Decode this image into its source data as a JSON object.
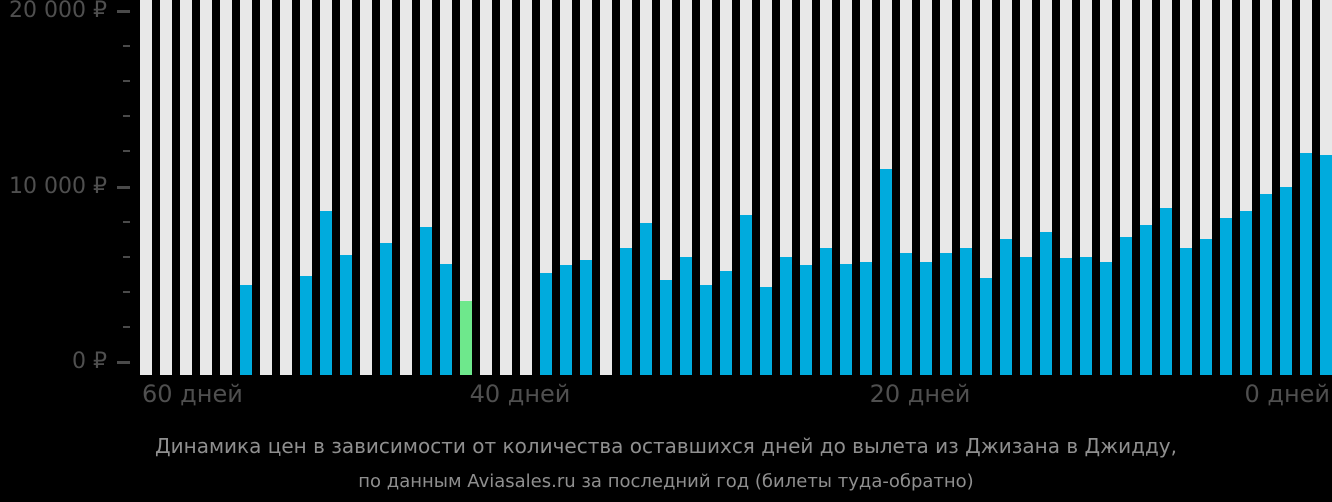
{
  "chart_data": {
    "type": "bar",
    "title": "Динамика цен в зависимости от количества оставшихся дней до вылета из Джизана в Джидду,",
    "subtitle": "по данным Aviasales.ru за последний год (билеты туда-обратно)",
    "x_axis": {
      "tick_labels": [
        "60 дней",
        "40 дней",
        "20 дней",
        "0 дней"
      ],
      "tick_days": [
        60,
        40,
        20,
        0
      ]
    },
    "y_axis": {
      "currency_symbol": "₽",
      "ticks": [
        {
          "value": 20000,
          "label": "20 000 ₽"
        },
        {
          "value": 10000,
          "label": "10 000 ₽"
        },
        {
          "value": 0,
          "label": "0 ₽"
        }
      ],
      "minor_tick_values": [
        18000,
        16000,
        14000,
        12000,
        8000,
        6000,
        4000,
        2000
      ],
      "ylim": [
        0,
        21300
      ]
    },
    "days_remaining": [
      59,
      58,
      57,
      56,
      55,
      54,
      53,
      52,
      51,
      50,
      49,
      48,
      47,
      46,
      45,
      44,
      43,
      42,
      41,
      40,
      39,
      38,
      37,
      36,
      35,
      34,
      33,
      32,
      31,
      30,
      29,
      28,
      27,
      26,
      25,
      24,
      23,
      22,
      21,
      20,
      19,
      18,
      17,
      16,
      15,
      14,
      13,
      12,
      11,
      10,
      9,
      8,
      7,
      6,
      5,
      4,
      3,
      2,
      1,
      0
    ],
    "values": [
      null,
      null,
      null,
      null,
      null,
      4400,
      null,
      null,
      4900,
      8600,
      6100,
      null,
      6800,
      null,
      7700,
      5600,
      3500,
      null,
      null,
      null,
      5100,
      5500,
      5800,
      null,
      6500,
      7900,
      4700,
      6000,
      4400,
      5200,
      8400,
      4300,
      6000,
      5500,
      6500,
      5600,
      5700,
      11000,
      6200,
      5700,
      6200,
      6500,
      4800,
      7000,
      6000,
      7400,
      5900,
      6000,
      5700,
      7100,
      7800,
      8800,
      6500,
      7000,
      8200,
      8600,
      9600,
      10000,
      11900,
      11800
    ],
    "min_price_highlight": {
      "day": 43,
      "value": 3500
    },
    "colors": {
      "bar": "#00abdd",
      "bar_track": "#e8e8e8",
      "highlight": "#6ee88c",
      "background": "#000000",
      "axis_label": "#4f4f4f",
      "title_text": "#8f8f8f"
    },
    "legend": "none",
    "grid": "off"
  }
}
